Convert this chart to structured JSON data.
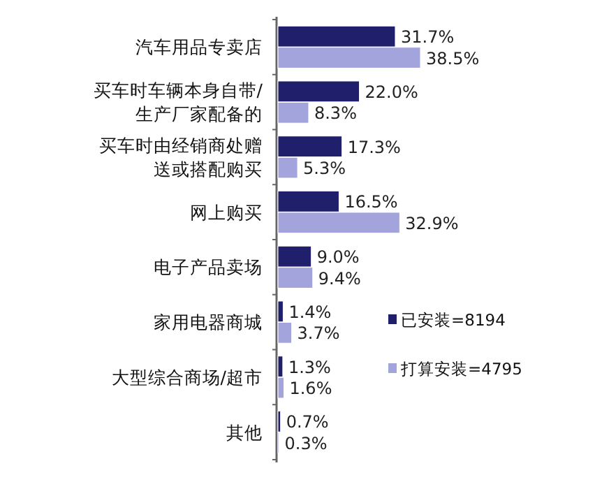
{
  "chart_data": {
    "type": "bar",
    "orientation": "horizontal",
    "categories": [
      "汽车用品专卖店",
      "买车时车辆本身自带/生产厂家配备的",
      "买车时由经销商处赠送或搭配购买",
      "网上购买",
      "电子产品卖场",
      "家用电器商城",
      "大型综合商场/超市",
      "其他"
    ],
    "series": [
      {
        "name": "已安装=8194",
        "color": "#1f1f6b",
        "values": [
          31.7,
          22.0,
          17.3,
          16.5,
          9.0,
          1.4,
          1.3,
          0.7
        ],
        "value_labels": [
          "31.7%",
          "22.0%",
          "17.3%",
          "16.5%",
          "9.0%",
          "1.4%",
          "1.3%",
          "0.7%"
        ]
      },
      {
        "name": "打算安装=4795",
        "color": "#a4a4dc",
        "values": [
          38.5,
          8.3,
          5.3,
          32.9,
          9.4,
          3.7,
          1.6,
          0.3
        ],
        "value_labels": [
          "38.5%",
          "8.3%",
          "5.3%",
          "32.9%",
          "9.4%",
          "3.7%",
          "1.6%",
          "0.3%"
        ]
      }
    ],
    "tick_labels": "y",
    "legend": "right"
  }
}
